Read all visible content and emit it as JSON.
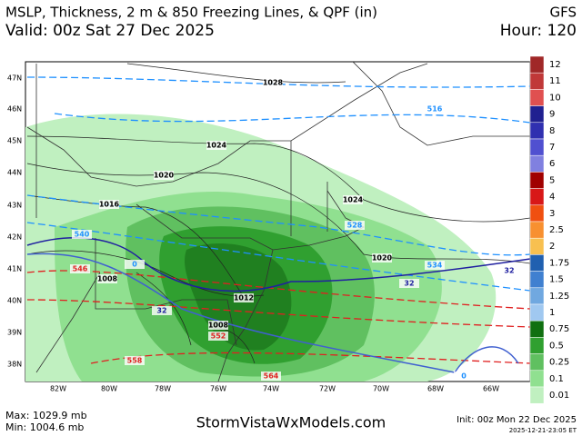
{
  "header": {
    "title": "MSLP, Thickness, 2 m & 850 Freezing Lines, & QPF (in)",
    "model": "GFS",
    "valid": "Valid: 00z Sat 27 Dec 2025",
    "hour": "Hour: 120"
  },
  "map": {
    "lat_labels": [
      "47N",
      "46N",
      "45N",
      "44N",
      "43N",
      "42N",
      "41N",
      "40N",
      "39N",
      "38N"
    ],
    "lon_labels": [
      "82W",
      "80W",
      "78W",
      "76W",
      "74W",
      "72W",
      "70W",
      "68W",
      "66W"
    ],
    "contour_labels": [
      "1028",
      "1024",
      "1020",
      "1016",
      "1012",
      "1008",
      "1024",
      "1020",
      "1008",
      "516",
      "528",
      "534",
      "540",
      "546",
      "552",
      "558",
      "564",
      "32",
      "32",
      "32",
      "0",
      "0"
    ]
  },
  "colorbar": {
    "labels": [
      "12",
      "11",
      "10",
      "9",
      "8",
      "7",
      "6",
      "5",
      "4",
      "3",
      "2.5",
      "2",
      "1.75",
      "1.5",
      "1.25",
      "1",
      "0.75",
      "0.5",
      "0.25",
      "0.1",
      "0.01"
    ],
    "colors": [
      "#a02828",
      "#c03838",
      "#e05050",
      "#202090",
      "#3030b0",
      "#5050d0",
      "#8080e0",
      "#a00000",
      "#d81818",
      "#f05010",
      "#f89030",
      "#f8c050",
      "#2060b0",
      "#4080d0",
      "#70a8e0",
      "#a0c8f0",
      "#107010",
      "#30a030",
      "#60c060",
      "#90e090",
      "#c0f0c0"
    ]
  },
  "footer": {
    "max": "Max: 1029.9 mb",
    "min": "Min: 1004.6 mb",
    "site": "StormVistaWxModels.com",
    "init": "Init: 00z Mon 22 Dec 2025",
    "stamp": "2025-12-21-23:05 ET"
  }
}
